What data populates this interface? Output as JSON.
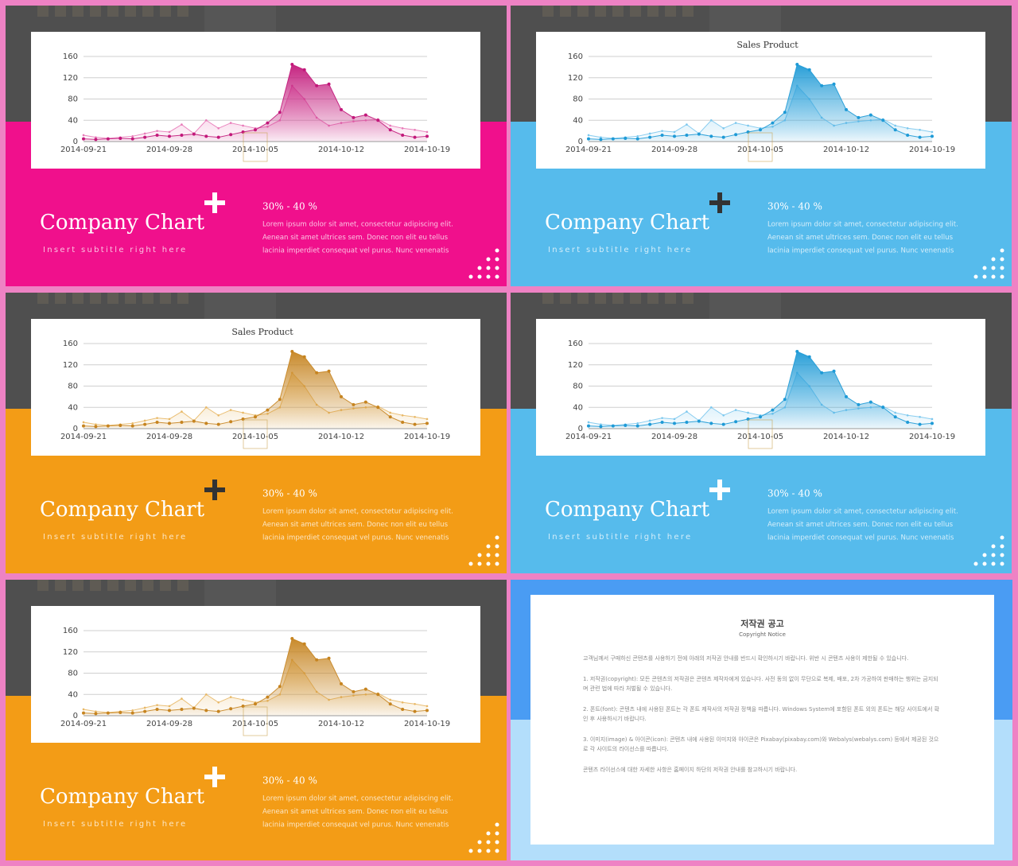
{
  "chart_data": [
    {
      "type": "area",
      "categories": [
        "2014-09-21",
        null,
        null,
        null,
        null,
        null,
        null,
        "2014-09-28",
        null,
        null,
        null,
        null,
        null,
        null,
        "2014-10-05",
        null,
        null,
        null,
        null,
        null,
        null,
        "2014-10-12",
        null,
        null,
        null,
        null,
        null,
        null,
        "2014-10-19"
      ],
      "series": [
        {
          "color": "#c2187a",
          "values": [
            5,
            4,
            5,
            6,
            5,
            8,
            12,
            10,
            12,
            14,
            10,
            8,
            13,
            18,
            22,
            35,
            55,
            145,
            135,
            105,
            108,
            60,
            45,
            50,
            40,
            22,
            12,
            8,
            10
          ]
        },
        {
          "color": "#e87ab8",
          "values": [
            12,
            8,
            6,
            8,
            10,
            15,
            20,
            18,
            32,
            15,
            40,
            25,
            35,
            30,
            25,
            28,
            40,
            105,
            80,
            45,
            30,
            35,
            38,
            40,
            42,
            30,
            25,
            22,
            18
          ]
        }
      ],
      "ylim": [
        0,
        160
      ],
      "yticks": [
        0,
        40,
        80,
        120,
        160
      ],
      "grid": true
    },
    {
      "type": "area",
      "title": "Sales Product",
      "categories": [
        "2014-09-21",
        null,
        null,
        null,
        null,
        null,
        null,
        "2014-09-28",
        null,
        null,
        null,
        null,
        null,
        null,
        "2014-10-05",
        null,
        null,
        null,
        null,
        null,
        null,
        "2014-10-12",
        null,
        null,
        null,
        null,
        null,
        null,
        "2014-10-19"
      ],
      "series": [
        {
          "color": "#1e9ad6",
          "values": [
            5,
            4,
            5,
            6,
            5,
            8,
            12,
            10,
            12,
            14,
            10,
            8,
            13,
            18,
            22,
            35,
            55,
            145,
            135,
            105,
            108,
            60,
            45,
            50,
            40,
            22,
            12,
            8,
            10
          ]
        },
        {
          "color": "#7cc8ee",
          "values": [
            12,
            8,
            6,
            8,
            10,
            15,
            20,
            18,
            32,
            15,
            40,
            25,
            35,
            30,
            25,
            28,
            40,
            105,
            80,
            45,
            30,
            35,
            38,
            40,
            42,
            30,
            25,
            22,
            18
          ]
        }
      ],
      "ylim": [
        0,
        160
      ],
      "yticks": [
        0,
        40,
        80,
        120,
        160
      ],
      "grid": true
    },
    {
      "type": "area",
      "title": "Sales Product",
      "categories": [
        "2014-09-21",
        null,
        null,
        null,
        null,
        null,
        null,
        "2014-09-28",
        null,
        null,
        null,
        null,
        null,
        null,
        "2014-10-05",
        null,
        null,
        null,
        null,
        null,
        null,
        "2014-10-12",
        null,
        null,
        null,
        null,
        null,
        null,
        "2014-10-19"
      ],
      "series": [
        {
          "color": "#c68420",
          "values": [
            5,
            4,
            5,
            6,
            5,
            8,
            12,
            10,
            12,
            14,
            10,
            8,
            13,
            18,
            22,
            35,
            55,
            145,
            135,
            105,
            108,
            60,
            45,
            50,
            40,
            22,
            12,
            8,
            10
          ]
        },
        {
          "color": "#e8b866",
          "values": [
            12,
            8,
            6,
            8,
            10,
            15,
            20,
            18,
            32,
            15,
            40,
            25,
            35,
            30,
            25,
            28,
            40,
            105,
            80,
            45,
            30,
            35,
            38,
            40,
            42,
            30,
            25,
            22,
            18
          ]
        }
      ],
      "ylim": [
        0,
        160
      ],
      "yticks": [
        0,
        40,
        80,
        120,
        160
      ],
      "grid": true
    },
    {
      "type": "area",
      "categories": [
        "2014-09-21",
        null,
        null,
        null,
        null,
        null,
        null,
        "2014-09-28",
        null,
        null,
        null,
        null,
        null,
        null,
        "2014-10-05",
        null,
        null,
        null,
        null,
        null,
        null,
        "2014-10-12",
        null,
        null,
        null,
        null,
        null,
        null,
        "2014-10-19"
      ],
      "series": [
        {
          "color": "#1e9ad6",
          "values": [
            5,
            4,
            5,
            6,
            5,
            8,
            12,
            10,
            12,
            14,
            10,
            8,
            13,
            18,
            22,
            35,
            55,
            145,
            135,
            105,
            108,
            60,
            45,
            50,
            40,
            22,
            12,
            8,
            10
          ]
        },
        {
          "color": "#7cc8ee",
          "values": [
            12,
            8,
            6,
            8,
            10,
            15,
            20,
            18,
            32,
            15,
            40,
            25,
            35,
            30,
            25,
            28,
            40,
            105,
            80,
            45,
            30,
            35,
            38,
            40,
            42,
            30,
            25,
            22,
            18
          ]
        }
      ],
      "ylim": [
        0,
        160
      ],
      "yticks": [
        0,
        40,
        80,
        120,
        160
      ],
      "grid": true
    },
    {
      "type": "area",
      "categories": [
        "2014-09-21",
        null,
        null,
        null,
        null,
        null,
        null,
        "2014-09-28",
        null,
        null,
        null,
        null,
        null,
        null,
        "2014-10-05",
        null,
        null,
        null,
        null,
        null,
        null,
        "2014-10-12",
        null,
        null,
        null,
        null,
        null,
        null,
        "2014-10-19"
      ],
      "series": [
        {
          "color": "#c68420",
          "values": [
            5,
            4,
            5,
            6,
            5,
            8,
            12,
            10,
            12,
            14,
            10,
            8,
            13,
            18,
            22,
            35,
            55,
            145,
            135,
            105,
            108,
            60,
            45,
            50,
            40,
            22,
            12,
            8,
            10
          ]
        },
        {
          "color": "#e8b866",
          "values": [
            12,
            8,
            6,
            8,
            10,
            15,
            20,
            18,
            32,
            15,
            40,
            25,
            35,
            30,
            25,
            28,
            40,
            105,
            80,
            45,
            30,
            35,
            38,
            40,
            42,
            30,
            25,
            22,
            18
          ]
        }
      ],
      "ylim": [
        0,
        160
      ],
      "yticks": [
        0,
        40,
        80,
        120,
        160
      ],
      "grid": true
    }
  ],
  "slides": [
    {
      "color": "#f0108c",
      "plus_color": "#ffffff",
      "heading": "Company Chart",
      "subtitle": "Insert subtitle right here",
      "range": "30% - 40 %",
      "body": [
        "Lorem ipsum dolor sit amet, consectetur adipiscing elit.",
        "Aenean sit amet ultrices sem. Donec non elit eu tellus",
        "lacinia imperdiet consequat vel purus. Nunc venenatis"
      ]
    },
    {
      "color": "#56bbec",
      "plus_color": "#333333",
      "heading": "Company Chart",
      "subtitle": "Insert subtitle right here",
      "range": "30% - 40 %",
      "body": [
        "Lorem ipsum dolor sit amet, consectetur adipiscing elit.",
        "Aenean sit amet ultrices sem. Donec non elit eu tellus",
        "lacinia imperdiet consequat vel purus. Nunc venenatis"
      ]
    },
    {
      "color": "#f39c16",
      "plus_color": "#333333",
      "heading": "Company Chart",
      "subtitle": "Insert subtitle right here",
      "range": "30% - 40 %",
      "body": [
        "Lorem ipsum dolor sit amet, consectetur adipiscing elit.",
        "Aenean sit amet ultrices sem. Donec non elit eu tellus",
        "lacinia imperdiet consequat vel purus. Nunc venenatis"
      ]
    },
    {
      "color": "#56bbec",
      "plus_color": "#ffffff",
      "heading": "Company Chart",
      "subtitle": "Insert subtitle right here",
      "range": "30% - 40 %",
      "body": [
        "Lorem ipsum dolor sit amet, consectetur adipiscing elit.",
        "Aenean sit amet ultrices sem. Donec non elit eu tellus",
        "lacinia imperdiet consequat vel purus. Nunc venenatis"
      ]
    },
    {
      "color": "#f39c16",
      "plus_color": "#ffffff",
      "heading": "Company Chart",
      "subtitle": "Insert subtitle right here",
      "range": "30% - 40 %",
      "body": [
        "Lorem ipsum dolor sit amet, consectetur adipiscing elit.",
        "Aenean sit amet ultrices sem. Donec non elit eu tellus",
        "lacinia imperdiet consequat vel purus. Nunc venenatis"
      ]
    }
  ],
  "notice": {
    "title": "저작권 공고",
    "subtitle": "Copyright Notice",
    "paragraphs": [
      "고객님께서 구매하신 콘텐츠를 사용하기 전에 아래의 저작권 안내를 반드시 확인하시기 바랍니다. 위반 시 콘텐츠 사용이 제한될 수 있습니다.",
      "1. 저작권(copyright): 모든 콘텐츠의 저작권은 콘텐츠 제작자에게 있습니다. 사전 동의 없이 무단으로 복제, 배포, 2차 가공하여 판매하는 행위는 금지되며 관련 법에 따라 처벌될 수 있습니다.",
      "2. 폰트(font): 콘텐츠 내에 사용된 폰트는 각 폰트 제작사의 저작권 정책을 따릅니다. Windows System에 포함된 폰트 외의 폰트는 해당 사이트에서 확인 후 사용하시기 바랍니다.",
      "3. 이미지(image) & 아이콘(icon): 콘텐츠 내에 사용된 이미지와 아이콘은 Pixabay(pixabay.com)와 Webalys(webalys.com) 등에서 제공된 것으로 각 사이트의 라이선스를 따릅니다.",
      "콘텐츠 라이선스에 대한 자세한 사항은 홈페이지 하단의 저작권 안내를 참고하시기 바랍니다."
    ]
  }
}
